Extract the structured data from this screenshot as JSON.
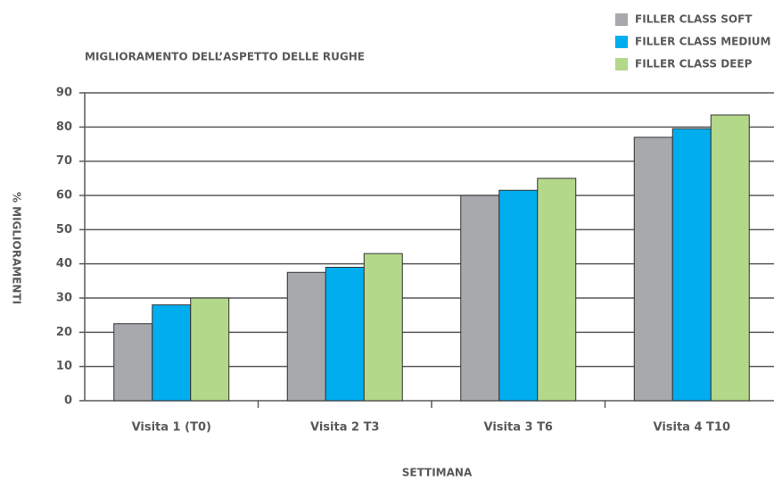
{
  "chart_data": {
    "type": "bar",
    "title": "MIGLIORAMENTO DELL’ASPETTO DELLE RUGHE",
    "y_label": "% MIGLIORAMENTI",
    "x_label": "SETTIMANA",
    "categories": [
      "Visita 1 (T0)",
      "Visita 2 T3",
      "Visita 3 T6",
      "Visita 4 T10"
    ],
    "series": [
      {
        "name": "FILLER CLASS SOFT",
        "color": "#a7a9ac",
        "values": [
          22.5,
          37.5,
          60,
          77
        ]
      },
      {
        "name": "FILLER CLASS MEDIUM",
        "color": "#00aeef",
        "values": [
          28,
          39,
          61.5,
          79.5
        ]
      },
      {
        "name": "FILLER CLASS DEEP",
        "color": "#b3d88a",
        "values": [
          30,
          43,
          65,
          83.5
        ]
      }
    ],
    "ylim": [
      0,
      90
    ],
    "yticks": [
      0,
      10,
      20,
      30,
      40,
      50,
      60,
      70,
      80,
      90
    ],
    "grid": true,
    "legend": "top-right"
  }
}
